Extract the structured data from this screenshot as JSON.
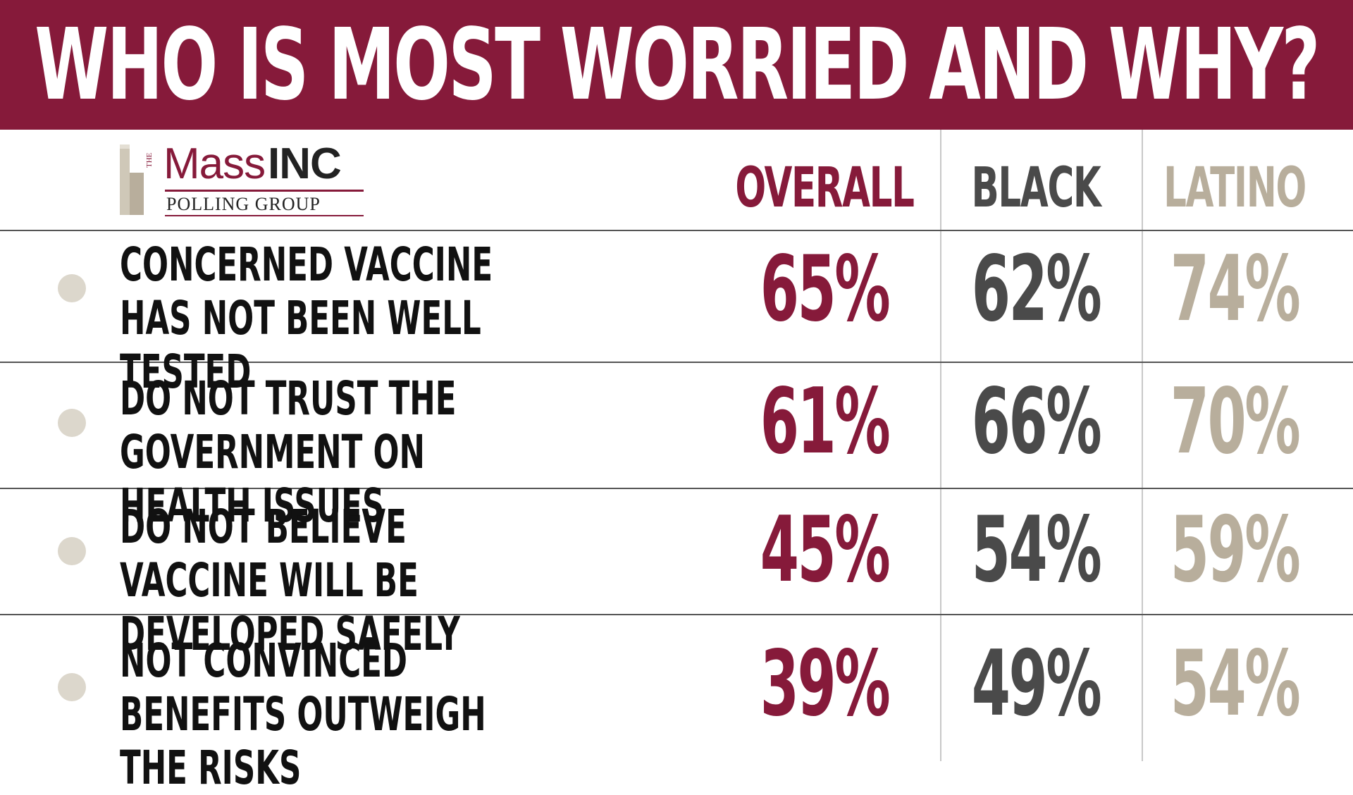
{
  "title": "WHO IS MOST WORRIED AND WHY?",
  "logo": {
    "the": "THE",
    "mass": "Mass",
    "inc": "INC",
    "sub": "POLLING GROUP"
  },
  "colors": {
    "title_bg": "#861a3a",
    "overall": "#861a3a",
    "black": "#4a4a4a",
    "latino": "#b8ae9c",
    "bullet": "#dcd7cc"
  },
  "chart_data": {
    "type": "table",
    "title": "WHO IS MOST WORRIED AND WHY?",
    "columns": [
      "OVERALL",
      "BLACK",
      "LATINO"
    ],
    "rows": [
      {
        "label": "CONCERNED VACCINE HAS NOT BEEN WELL TESTED",
        "display": [
          "65%",
          "62%",
          "74%"
        ],
        "values": [
          65,
          62,
          74
        ]
      },
      {
        "label": "DO NOT TRUST THE GOVERNMENT ON HEALTH ISSUES",
        "display": [
          "61%",
          "66%",
          "70%"
        ],
        "values": [
          61,
          66,
          70
        ]
      },
      {
        "label": "DO NOT BELIEVE VACCINE WILL BE DEVELOPED SAFELY",
        "display": [
          "45%",
          "54%",
          "59%"
        ],
        "values": [
          45,
          54,
          59
        ]
      },
      {
        "label": "NOT CONVINCED BENEFITS OUTWEIGH THE RISKS",
        "display": [
          "39%",
          "49%",
          "54%"
        ],
        "values": [
          39,
          49,
          54
        ]
      }
    ]
  }
}
